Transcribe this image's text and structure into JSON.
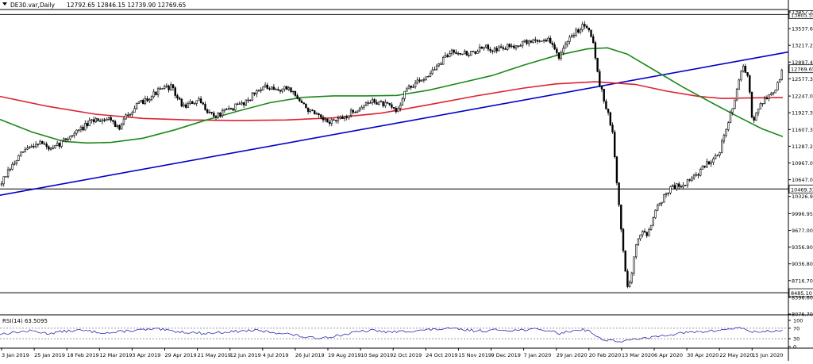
{
  "window": {
    "title": "DE30.var,Daily",
    "ohlc": "12792.65 12846.15 12739.90 12769.65",
    "collapse_icon": "triangle-down-icon"
  },
  "chart_data": {
    "type": "candlestick",
    "symbol": "DE30.var",
    "timeframe": "Daily",
    "ylim": [
      8000,
      14000
    ],
    "y_ticks": [
      {
        "label": "13857.20",
        "value": 13857.2
      },
      {
        "label": "13537.60",
        "value": 13537.6
      },
      {
        "label": "13217.25",
        "value": 13217.25
      },
      {
        "label": "12897.40",
        "value": 12897.4
      },
      {
        "label": "12577.30",
        "value": 12577.3
      },
      {
        "label": "12247.05",
        "value": 12247.05
      },
      {
        "label": "11927.30",
        "value": 11927.3
      },
      {
        "label": "11607.30",
        "value": 11607.3
      },
      {
        "label": "11287.20",
        "value": 11287.2
      },
      {
        "label": "10967.05",
        "value": 10967.05
      },
      {
        "label": "10647.00",
        "value": 10647.0
      },
      {
        "label": "10326.90",
        "value": 10326.9
      },
      {
        "label": "9996.95",
        "value": 9996.95
      },
      {
        "label": "9677.00",
        "value": 9677.0
      },
      {
        "label": "9356.90",
        "value": 9356.9
      },
      {
        "label": "9036.80",
        "value": 9036.8
      },
      {
        "label": "8716.70",
        "value": 8716.7
      },
      {
        "label": "8396.60",
        "value": 8396.6
      },
      {
        "label": "8076.70",
        "value": 8076.7
      }
    ],
    "x_labels": [
      "3 Jan 2019",
      "25 Jan 2019",
      "18 Feb 2019",
      "12 Mar 2019",
      "3 Apr 2019",
      "29 Apr 2019",
      "21 May 2019",
      "12 Jun 2019",
      "4 Jul 2019",
      "26 Jul 2019",
      "19 Aug 2019",
      "10 Sep 2019",
      "2 Oct 2019",
      "24 Oct 2019",
      "15 Nov 2019",
      "9 Dec 2019",
      "7 Jan 2020",
      "29 Jan 2020",
      "20 Feb 2020",
      "13 Mar 2020",
      "6 Apr 2020",
      "30 Apr 2020",
      "22 May 2020",
      "15 Jun 2020"
    ],
    "horizontal_levels": [
      {
        "label": "13805.55",
        "value": 13805.55,
        "color": "#000000"
      },
      {
        "label": "10469.33",
        "value": 10469.33,
        "color": "#000000"
      },
      {
        "label": "8485.10",
        "value": 8485.1,
        "color": "#000000"
      }
    ],
    "current_price": {
      "label": "12769.65",
      "value": 12769.65
    },
    "trendline": {
      "color": "#0000cc",
      "start": {
        "date": "3 Jan 2019",
        "value": 10350
      },
      "end": {
        "date": "1 Jul 2020",
        "value": 13090
      }
    },
    "series": [
      {
        "kind": "sma",
        "color": "#dd2233",
        "points": [
          [
            0,
            12240
          ],
          [
            60,
            12050
          ],
          [
            120,
            11900
          ],
          [
            180,
            11820
          ],
          [
            240,
            11790
          ],
          [
            300,
            11780
          ],
          [
            360,
            11790
          ],
          [
            420,
            11830
          ],
          [
            480,
            11920
          ],
          [
            540,
            12080
          ],
          [
            600,
            12250
          ],
          [
            660,
            12400
          ],
          [
            700,
            12480
          ],
          [
            750,
            12520
          ],
          [
            800,
            12470
          ],
          [
            840,
            12340
          ],
          [
            880,
            12240
          ],
          [
            910,
            12200
          ],
          [
            940,
            12210
          ],
          [
            986,
            12220
          ]
        ]
      },
      {
        "kind": "sma",
        "color": "#1a8a1a",
        "points": [
          [
            0,
            11800
          ],
          [
            40,
            11560
          ],
          [
            80,
            11380
          ],
          [
            110,
            11350
          ],
          [
            140,
            11360
          ],
          [
            180,
            11440
          ],
          [
            220,
            11600
          ],
          [
            260,
            11790
          ],
          [
            300,
            11960
          ],
          [
            340,
            12120
          ],
          [
            380,
            12220
          ],
          [
            420,
            12250
          ],
          [
            460,
            12250
          ],
          [
            500,
            12260
          ],
          [
            540,
            12360
          ],
          [
            580,
            12500
          ],
          [
            620,
            12640
          ],
          [
            660,
            12840
          ],
          [
            700,
            13020
          ],
          [
            740,
            13150
          ],
          [
            765,
            13170
          ],
          [
            790,
            13050
          ],
          [
            820,
            12780
          ],
          [
            860,
            12420
          ],
          [
            900,
            12090
          ],
          [
            930,
            11850
          ],
          [
            960,
            11620
          ],
          [
            986,
            11470
          ]
        ]
      },
      {
        "kind": "candles",
        "color_up": "#000000",
        "color_down": "#000000",
        "keypoints": [
          [
            0,
            10550
          ],
          [
            15,
            10900
          ],
          [
            30,
            11200
          ],
          [
            50,
            11380
          ],
          [
            65,
            11200
          ],
          [
            80,
            11400
          ],
          [
            100,
            11600
          ],
          [
            120,
            11800
          ],
          [
            140,
            11820
          ],
          [
            150,
            11600
          ],
          [
            160,
            11900
          ],
          [
            180,
            12150
          ],
          [
            200,
            12350
          ],
          [
            215,
            12430
          ],
          [
            230,
            12050
          ],
          [
            250,
            12150
          ],
          [
            270,
            11850
          ],
          [
            290,
            12000
          ],
          [
            310,
            12150
          ],
          [
            330,
            12430
          ],
          [
            345,
            12350
          ],
          [
            365,
            12400
          ],
          [
            380,
            12100
          ],
          [
            395,
            11900
          ],
          [
            410,
            11750
          ],
          [
            430,
            11800
          ],
          [
            450,
            12000
          ],
          [
            470,
            12160
          ],
          [
            490,
            12050
          ],
          [
            500,
            11950
          ],
          [
            510,
            12350
          ],
          [
            530,
            12550
          ],
          [
            550,
            12800
          ],
          [
            570,
            13130
          ],
          [
            590,
            13050
          ],
          [
            610,
            13170
          ],
          [
            630,
            13150
          ],
          [
            650,
            13230
          ],
          [
            670,
            13300
          ],
          [
            690,
            13330
          ],
          [
            705,
            13000
          ],
          [
            720,
            13400
          ],
          [
            735,
            13620
          ],
          [
            743,
            13550
          ],
          [
            748,
            13180
          ],
          [
            755,
            12500
          ],
          [
            765,
            11950
          ],
          [
            772,
            11500
          ],
          [
            775,
            10900
          ],
          [
            780,
            10100
          ],
          [
            786,
            9100
          ],
          [
            790,
            8600
          ],
          [
            795,
            8800
          ],
          [
            800,
            9300
          ],
          [
            808,
            9700
          ],
          [
            815,
            9600
          ],
          [
            825,
            10050
          ],
          [
            835,
            10300
          ],
          [
            845,
            10500
          ],
          [
            860,
            10550
          ],
          [
            875,
            10700
          ],
          [
            890,
            10950
          ],
          [
            905,
            11150
          ],
          [
            915,
            11600
          ],
          [
            925,
            12200
          ],
          [
            935,
            12800
          ],
          [
            942,
            12600
          ],
          [
            948,
            11750
          ],
          [
            955,
            12050
          ],
          [
            965,
            12200
          ],
          [
            978,
            12400
          ],
          [
            986,
            12770
          ]
        ],
        "seed": 7
      }
    ],
    "rsi": {
      "label": "RSI(14) 63.5095",
      "levels": [
        {
          "label": "100",
          "value": 100
        },
        {
          "label": "70",
          "value": 70
        },
        {
          "label": "30",
          "value": 30
        },
        {
          "label": "0",
          "value": 0
        }
      ],
      "guide_levels": [
        70,
        30
      ],
      "color": "#2a2ab0",
      "keypoints": [
        [
          0,
          48
        ],
        [
          20,
          55
        ],
        [
          40,
          60
        ],
        [
          60,
          50
        ],
        [
          80,
          58
        ],
        [
          100,
          62
        ],
        [
          120,
          56
        ],
        [
          140,
          52
        ],
        [
          160,
          60
        ],
        [
          180,
          64
        ],
        [
          200,
          66
        ],
        [
          220,
          58
        ],
        [
          240,
          54
        ],
        [
          260,
          50
        ],
        [
          280,
          55
        ],
        [
          300,
          58
        ],
        [
          320,
          62
        ],
        [
          340,
          55
        ],
        [
          360,
          50
        ],
        [
          380,
          38
        ],
        [
          395,
          32
        ],
        [
          410,
          36
        ],
        [
          430,
          44
        ],
        [
          450,
          56
        ],
        [
          470,
          62
        ],
        [
          490,
          55
        ],
        [
          510,
          58
        ],
        [
          530,
          62
        ],
        [
          550,
          66
        ],
        [
          570,
          68
        ],
        [
          590,
          62
        ],
        [
          610,
          60
        ],
        [
          630,
          64
        ],
        [
          650,
          62
        ],
        [
          670,
          66
        ],
        [
          690,
          62
        ],
        [
          705,
          50
        ],
        [
          720,
          60
        ],
        [
          735,
          66
        ],
        [
          745,
          55
        ],
        [
          755,
          30
        ],
        [
          765,
          25
        ],
        [
          775,
          22
        ],
        [
          785,
          18
        ],
        [
          795,
          25
        ],
        [
          805,
          32
        ],
        [
          815,
          30
        ],
        [
          825,
          38
        ],
        [
          840,
          45
        ],
        [
          860,
          52
        ],
        [
          880,
          56
        ],
        [
          900,
          60
        ],
        [
          915,
          66
        ],
        [
          930,
          72
        ],
        [
          940,
          64
        ],
        [
          950,
          55
        ],
        [
          965,
          58
        ],
        [
          978,
          60
        ],
        [
          986,
          63.5
        ]
      ],
      "seed": 13
    }
  }
}
